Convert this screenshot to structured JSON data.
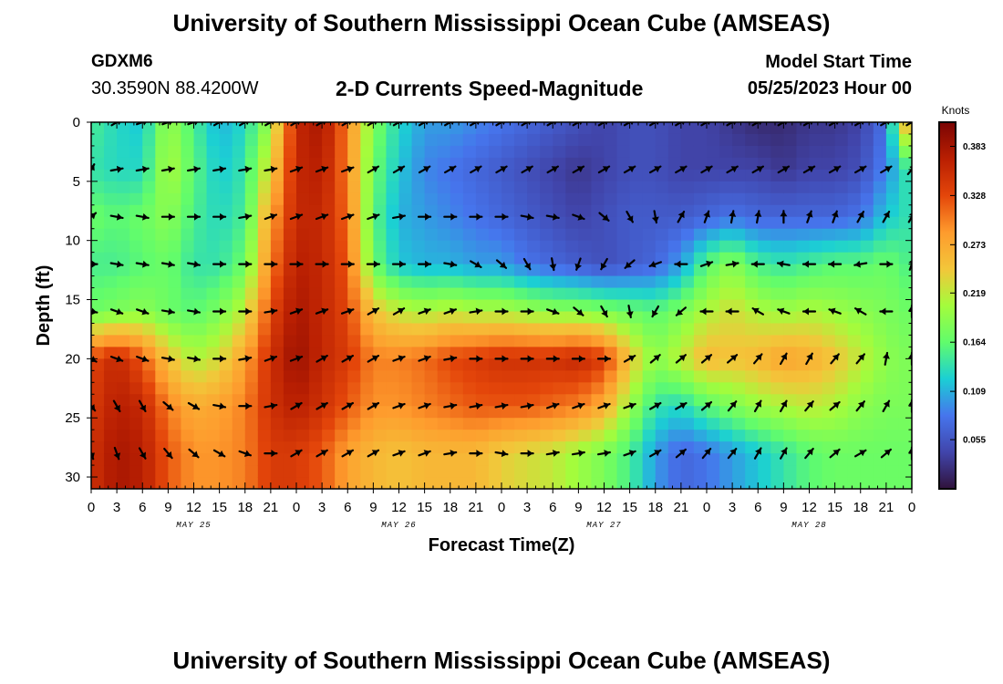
{
  "header": {
    "title": "University of Southern Mississippi Ocean Cube (AMSEAS)",
    "station": "GDXM6",
    "coords": "30.3590N  88.4200W",
    "subtitle": "2-D Currents Speed-Magnitude",
    "start_label": "Model Start Time",
    "start_value": "05/25/2023 Hour 00"
  },
  "footer": {
    "title": "University of Southern Mississippi Ocean Cube (AMSEAS)"
  },
  "chart_data": {
    "type": "heatmap",
    "title": "2-D Currents Speed-Magnitude",
    "xlabel": "Forecast Time(Z)",
    "ylabel": "Depth (ft)",
    "x_range_hours": [
      0,
      96
    ],
    "y_range_ft": [
      0,
      31
    ],
    "x_tick_labels": [
      "0",
      "3",
      "6",
      "9",
      "12",
      "15",
      "18",
      "21",
      "0",
      "3",
      "6",
      "9",
      "12",
      "15",
      "18",
      "21",
      "0",
      "3",
      "6",
      "9",
      "12",
      "15",
      "18",
      "21",
      "0",
      "3",
      "6",
      "9",
      "12",
      "15",
      "18",
      "21",
      "0"
    ],
    "y_ticks": [
      0,
      5,
      10,
      15,
      20,
      25,
      30
    ],
    "y_tick_labels": [
      "0",
      "5",
      "10",
      "15",
      "20",
      "25",
      "30"
    ],
    "date_labels": [
      {
        "text": "MAY 25",
        "hour": 12
      },
      {
        "text": "MAY 26",
        "hour": 36
      },
      {
        "text": "MAY 27",
        "hour": 60
      },
      {
        "text": "MAY 28",
        "hour": 84
      }
    ],
    "colorbar": {
      "label": "Knots",
      "min": 0.0,
      "max": 0.41,
      "tick_values": [
        0.055,
        0.109,
        0.164,
        0.219,
        0.273,
        0.328,
        0.383
      ],
      "tick_labels": [
        "0.055",
        "0.109",
        "0.164",
        "0.219",
        "0.273",
        "0.328",
        "0.383"
      ]
    },
    "vector_depths_ft": [
      0,
      4,
      8,
      12,
      16,
      20,
      24,
      28
    ],
    "vector_hours": [
      0,
      3,
      6,
      9,
      12,
      15,
      18,
      21,
      24,
      27,
      30,
      33,
      36,
      39,
      42,
      45,
      48,
      51,
      54,
      57,
      60,
      63,
      66,
      69,
      72,
      75,
      78,
      81,
      84,
      87,
      90,
      93,
      96
    ],
    "speed_profiles": [
      {
        "hour": 0,
        "values": [
          0.15,
          0.14,
          0.17,
          0.15,
          0.17,
          0.33,
          0.34,
          0.35
        ]
      },
      {
        "hour": 3,
        "values": [
          0.13,
          0.13,
          0.16,
          0.15,
          0.18,
          0.36,
          0.37,
          0.38
        ]
      },
      {
        "hour": 6,
        "values": [
          0.12,
          0.13,
          0.17,
          0.16,
          0.19,
          0.32,
          0.36,
          0.37
        ]
      },
      {
        "hour": 9,
        "values": [
          0.2,
          0.21,
          0.19,
          0.17,
          0.17,
          0.25,
          0.3,
          0.32
        ]
      },
      {
        "hour": 12,
        "values": [
          0.15,
          0.16,
          0.15,
          0.14,
          0.16,
          0.21,
          0.27,
          0.29
        ]
      },
      {
        "hour": 15,
        "values": [
          0.11,
          0.12,
          0.13,
          0.14,
          0.18,
          0.23,
          0.28,
          0.29
        ]
      },
      {
        "hour": 18,
        "values": [
          0.13,
          0.14,
          0.15,
          0.17,
          0.22,
          0.28,
          0.3,
          0.3
        ]
      },
      {
        "hour": 21,
        "values": [
          0.2,
          0.24,
          0.28,
          0.3,
          0.33,
          0.35,
          0.35,
          0.34
        ]
      },
      {
        "hour": 24,
        "values": [
          0.36,
          0.36,
          0.36,
          0.37,
          0.38,
          0.39,
          0.37,
          0.34
        ]
      },
      {
        "hour": 27,
        "values": [
          0.38,
          0.37,
          0.36,
          0.36,
          0.36,
          0.36,
          0.35,
          0.32
        ]
      },
      {
        "hour": 30,
        "values": [
          0.3,
          0.3,
          0.31,
          0.32,
          0.33,
          0.34,
          0.32,
          0.28
        ]
      },
      {
        "hour": 33,
        "values": [
          0.18,
          0.17,
          0.16,
          0.17,
          0.25,
          0.3,
          0.29,
          0.26
        ]
      },
      {
        "hour": 36,
        "values": [
          0.13,
          0.12,
          0.11,
          0.12,
          0.22,
          0.3,
          0.29,
          0.25
        ]
      },
      {
        "hour": 39,
        "values": [
          0.1,
          0.09,
          0.1,
          0.11,
          0.21,
          0.31,
          0.3,
          0.26
        ]
      },
      {
        "hour": 42,
        "values": [
          0.1,
          0.08,
          0.09,
          0.11,
          0.22,
          0.33,
          0.31,
          0.26
        ]
      },
      {
        "hour": 45,
        "values": [
          0.09,
          0.07,
          0.08,
          0.1,
          0.21,
          0.34,
          0.32,
          0.26
        ]
      },
      {
        "hour": 48,
        "values": [
          0.08,
          0.06,
          0.07,
          0.1,
          0.21,
          0.35,
          0.32,
          0.24
        ]
      },
      {
        "hour": 51,
        "values": [
          0.07,
          0.05,
          0.06,
          0.08,
          0.2,
          0.35,
          0.32,
          0.23
        ]
      },
      {
        "hour": 54,
        "values": [
          0.06,
          0.04,
          0.05,
          0.07,
          0.19,
          0.35,
          0.31,
          0.22
        ]
      },
      {
        "hour": 57,
        "values": [
          0.05,
          0.03,
          0.04,
          0.06,
          0.19,
          0.36,
          0.3,
          0.2
        ]
      },
      {
        "hour": 60,
        "values": [
          0.04,
          0.04,
          0.05,
          0.05,
          0.18,
          0.34,
          0.27,
          0.18
        ]
      },
      {
        "hour": 63,
        "values": [
          0.05,
          0.05,
          0.06,
          0.06,
          0.17,
          0.25,
          0.2,
          0.15
        ]
      },
      {
        "hour": 66,
        "values": [
          0.05,
          0.05,
          0.06,
          0.07,
          0.16,
          0.19,
          0.14,
          0.1
        ]
      },
      {
        "hour": 69,
        "values": [
          0.04,
          0.04,
          0.06,
          0.1,
          0.18,
          0.22,
          0.13,
          0.07
        ]
      },
      {
        "hour": 72,
        "values": [
          0.04,
          0.04,
          0.07,
          0.16,
          0.21,
          0.26,
          0.16,
          0.08
        ]
      },
      {
        "hour": 75,
        "values": [
          0.03,
          0.04,
          0.08,
          0.19,
          0.23,
          0.25,
          0.18,
          0.1
        ]
      },
      {
        "hour": 78,
        "values": [
          0.02,
          0.04,
          0.07,
          0.15,
          0.21,
          0.26,
          0.2,
          0.12
        ]
      },
      {
        "hour": 81,
        "values": [
          0.02,
          0.03,
          0.07,
          0.14,
          0.2,
          0.28,
          0.21,
          0.14
        ]
      },
      {
        "hour": 84,
        "values": [
          0.03,
          0.04,
          0.07,
          0.15,
          0.21,
          0.27,
          0.22,
          0.16
        ]
      },
      {
        "hour": 87,
        "values": [
          0.03,
          0.04,
          0.07,
          0.16,
          0.2,
          0.25,
          0.21,
          0.17
        ]
      },
      {
        "hour": 90,
        "values": [
          0.04,
          0.05,
          0.08,
          0.16,
          0.19,
          0.22,
          0.19,
          0.17
        ]
      },
      {
        "hour": 93,
        "values": [
          0.08,
          0.09,
          0.12,
          0.17,
          0.18,
          0.19,
          0.18,
          0.17
        ]
      },
      {
        "hour": 96,
        "values": [
          0.31,
          0.15,
          0.14,
          0.15,
          0.17,
          0.18,
          0.18,
          0.17
        ]
      }
    ],
    "vector_directions_deg": [
      [
        20,
        60,
        70,
        70,
        70,
        60,
        60,
        60,
        60,
        60,
        60,
        60,
        60,
        60,
        60,
        60,
        60,
        60,
        60,
        60,
        60,
        60,
        60,
        60,
        60,
        60,
        60,
        60,
        60,
        60,
        60,
        60,
        60
      ],
      [
        30,
        80,
        80,
        80,
        80,
        80,
        80,
        80,
        70,
        70,
        70,
        60,
        60,
        60,
        60,
        60,
        60,
        60,
        60,
        60,
        60,
        60,
        60,
        60,
        60,
        60,
        60,
        60,
        60,
        60,
        60,
        60,
        40
      ],
      [
        50,
        100,
        100,
        90,
        90,
        90,
        80,
        70,
        70,
        70,
        70,
        70,
        80,
        90,
        90,
        90,
        90,
        100,
        100,
        110,
        130,
        150,
        170,
        30,
        20,
        10,
        10,
        0,
        20,
        20,
        30,
        30,
        30
      ],
      [
        90,
        100,
        100,
        100,
        100,
        90,
        90,
        90,
        90,
        90,
        90,
        90,
        90,
        90,
        100,
        120,
        130,
        150,
        170,
        200,
        210,
        230,
        250,
        270,
        70,
        80,
        270,
        280,
        270,
        270,
        260,
        90,
        20
      ],
      [
        100,
        110,
        110,
        100,
        100,
        90,
        90,
        80,
        70,
        70,
        70,
        60,
        60,
        70,
        70,
        80,
        90,
        90,
        110,
        130,
        150,
        170,
        210,
        230,
        270,
        270,
        300,
        290,
        270,
        290,
        300,
        270,
        0
      ],
      [
        120,
        110,
        110,
        100,
        100,
        90,
        80,
        70,
        70,
        60,
        60,
        60,
        70,
        70,
        80,
        90,
        90,
        90,
        90,
        90,
        90,
        60,
        50,
        50,
        50,
        50,
        40,
        30,
        30,
        40,
        40,
        10,
        0
      ],
      [
        140,
        150,
        150,
        130,
        120,
        100,
        90,
        80,
        60,
        60,
        60,
        60,
        70,
        70,
        80,
        80,
        80,
        80,
        70,
        70,
        70,
        70,
        60,
        60,
        50,
        40,
        30,
        30,
        40,
        50,
        40,
        30,
        0
      ],
      [
        160,
        160,
        150,
        140,
        130,
        120,
        110,
        90,
        60,
        60,
        60,
        60,
        70,
        70,
        80,
        90,
        100,
        90,
        80,
        80,
        80,
        70,
        60,
        50,
        40,
        40,
        30,
        30,
        40,
        50,
        60,
        50,
        0
      ]
    ]
  }
}
